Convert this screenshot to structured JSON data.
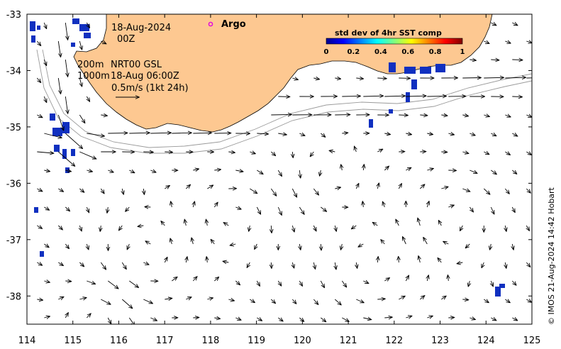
{
  "annotations": {
    "date": "18-Aug-2024",
    "hour": "00Z",
    "iso200": "200m",
    "iso1000": "1000m",
    "product": "NRT00 GSL",
    "valid": "18-Aug 06:00Z",
    "scale": "0.5m/s (1kt 24h)"
  },
  "argo": {
    "label": "Argo",
    "color": "#e000e0"
  },
  "colorbar": {
    "title": "std dev of 4hr SST comp",
    "ticks": [
      "0",
      "0.2",
      "0.4",
      "0.6",
      "0.8",
      "1"
    ]
  },
  "credit": "© IMOS 21-Aug-2024 14:42 Hobart",
  "colors": {
    "land": "#fdc891",
    "arrow": "#000000",
    "isobath": "#9a9a9a",
    "sst_patch": "#1030c0"
  },
  "chart_data": {
    "type": "map",
    "xlim": [
      114,
      125
    ],
    "ylim": [
      -38.5,
      -33
    ],
    "x_ticks": [
      "114",
      "115",
      "116",
      "117",
      "118",
      "119",
      "120",
      "121",
      "122",
      "123",
      "124",
      "125"
    ],
    "y_ticks": [
      "-33",
      "-34",
      "-35",
      "-36",
      "-37",
      "-38"
    ]
  }
}
